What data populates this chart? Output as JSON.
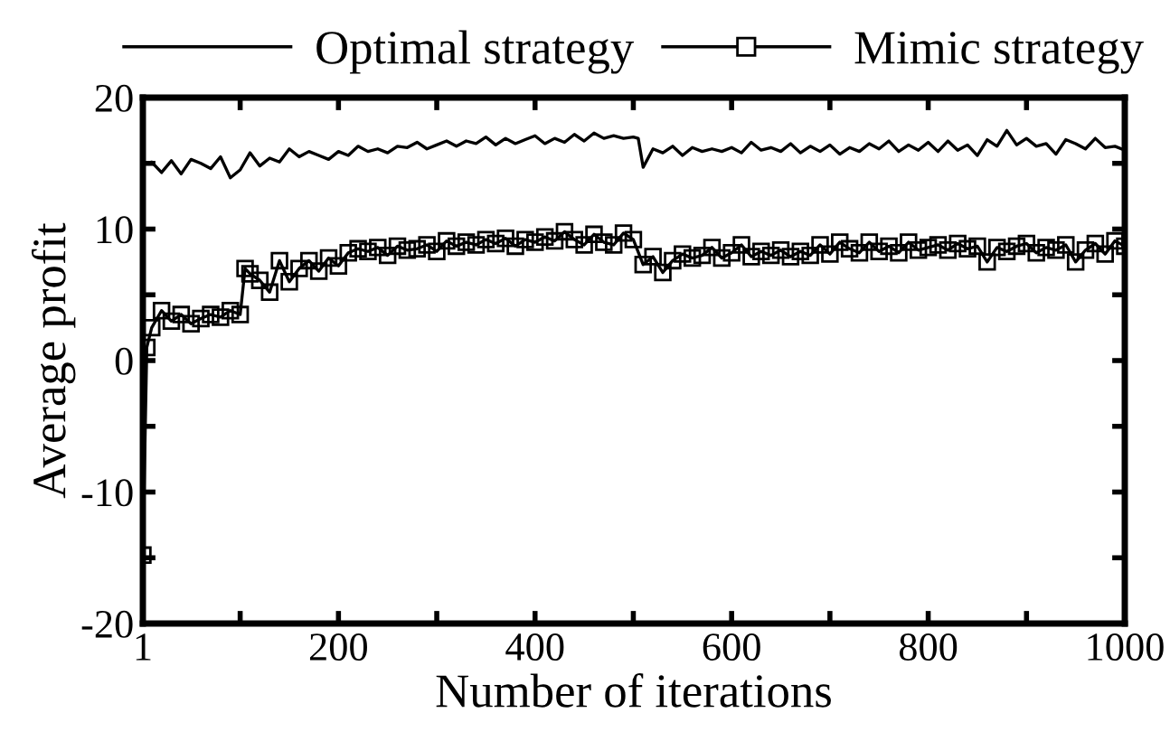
{
  "chart_data": {
    "type": "line",
    "xlabel": "Number of iterations",
    "ylabel": "Average profit",
    "xlim": [
      1,
      1000
    ],
    "ylim": [
      -20,
      20
    ],
    "xticks": [
      1,
      {
        "value": 100,
        "label": null
      },
      200,
      {
        "value": 300,
        "label": null
      },
      400,
      {
        "value": 500,
        "label": null
      },
      600,
      {
        "value": 700,
        "label": null
      },
      800,
      {
        "value": 900,
        "label": null
      },
      1000
    ],
    "yticks": [
      -20,
      {
        "value": -15,
        "label": null
      },
      -10,
      {
        "value": -5,
        "label": null
      },
      0,
      {
        "value": 5,
        "label": null
      },
      10,
      {
        "value": 15,
        "label": null
      },
      20
    ],
    "grid": false,
    "legend": "top",
    "series": [
      {
        "name": "Optimal strategy",
        "color": "#000000",
        "marker": "none",
        "x": [
          1,
          10,
          20,
          30,
          40,
          50,
          60,
          70,
          80,
          90,
          100,
          110,
          120,
          130,
          140,
          150,
          160,
          170,
          180,
          190,
          200,
          210,
          220,
          230,
          240,
          250,
          260,
          270,
          280,
          290,
          300,
          310,
          320,
          330,
          340,
          350,
          360,
          370,
          380,
          390,
          400,
          410,
          420,
          430,
          440,
          450,
          460,
          470,
          480,
          490,
          500,
          505,
          510,
          520,
          530,
          540,
          550,
          560,
          570,
          580,
          590,
          600,
          610,
          620,
          630,
          640,
          650,
          660,
          670,
          680,
          690,
          700,
          710,
          720,
          730,
          740,
          750,
          760,
          770,
          780,
          790,
          800,
          810,
          820,
          830,
          840,
          850,
          860,
          870,
          880,
          890,
          900,
          910,
          920,
          930,
          940,
          950,
          960,
          970,
          980,
          990,
          1000
        ],
        "values": [
          15.0,
          15.1,
          14.3,
          15.2,
          14.2,
          15.3,
          15.0,
          14.6,
          15.5,
          13.9,
          14.5,
          15.8,
          14.8,
          15.4,
          15.1,
          16.1,
          15.5,
          15.9,
          15.6,
          15.3,
          15.9,
          15.6,
          16.3,
          15.9,
          16.1,
          15.8,
          16.3,
          16.2,
          16.6,
          16.1,
          16.4,
          16.7,
          16.3,
          16.7,
          16.5,
          17.0,
          16.4,
          16.9,
          16.5,
          16.8,
          17.1,
          16.5,
          16.9,
          16.6,
          17.2,
          16.7,
          17.3,
          16.9,
          17.1,
          16.9,
          17.0,
          16.9,
          14.7,
          16.1,
          15.8,
          16.3,
          15.6,
          16.2,
          15.9,
          16.1,
          15.9,
          16.2,
          15.8,
          16.6,
          16.0,
          16.2,
          15.9,
          16.5,
          15.8,
          16.3,
          15.9,
          16.4,
          15.7,
          16.2,
          15.9,
          16.5,
          16.1,
          16.7,
          15.9,
          16.4,
          16.0,
          16.6,
          15.9,
          16.7,
          16.0,
          16.4,
          15.6,
          16.8,
          16.3,
          17.5,
          16.4,
          16.9,
          16.3,
          16.5,
          15.7,
          16.8,
          16.5,
          16.1,
          16.9,
          16.2,
          16.3,
          16.0
        ]
      },
      {
        "name": "Mimic strategy",
        "color": "#000000",
        "marker": "square",
        "x": [
          1,
          5,
          10,
          20,
          30,
          40,
          50,
          60,
          70,
          80,
          90,
          100,
          105,
          110,
          120,
          130,
          140,
          150,
          160,
          170,
          180,
          190,
          200,
          210,
          220,
          230,
          240,
          250,
          260,
          270,
          280,
          290,
          300,
          310,
          320,
          330,
          340,
          350,
          360,
          370,
          380,
          390,
          400,
          410,
          420,
          430,
          440,
          450,
          460,
          470,
          480,
          490,
          500,
          510,
          520,
          530,
          540,
          550,
          560,
          570,
          580,
          590,
          600,
          610,
          620,
          630,
          640,
          650,
          660,
          670,
          680,
          690,
          700,
          710,
          720,
          730,
          740,
          750,
          760,
          770,
          780,
          790,
          800,
          810,
          820,
          830,
          840,
          850,
          860,
          870,
          880,
          890,
          900,
          910,
          920,
          930,
          940,
          950,
          960,
          970,
          980,
          990,
          1000
        ],
        "values": [
          -14.8,
          1.0,
          2.5,
          3.8,
          3.0,
          3.5,
          2.8,
          3.2,
          3.5,
          3.3,
          3.8,
          3.5,
          7.0,
          6.6,
          6.1,
          5.2,
          7.6,
          6.0,
          7.0,
          7.6,
          6.8,
          7.8,
          7.2,
          8.2,
          8.5,
          8.3,
          8.6,
          8.0,
          8.7,
          8.4,
          8.5,
          8.8,
          8.3,
          9.1,
          8.7,
          9.0,
          8.8,
          9.2,
          8.9,
          9.3,
          8.7,
          9.2,
          9.0,
          9.4,
          9.1,
          9.8,
          9.2,
          8.8,
          9.6,
          9.0,
          8.8,
          9.7,
          9.2,
          7.3,
          7.9,
          6.7,
          7.6,
          8.1,
          7.8,
          8.0,
          8.6,
          7.8,
          8.2,
          8.8,
          7.9,
          8.3,
          8.0,
          8.4,
          7.9,
          8.3,
          8.0,
          8.8,
          8.1,
          9.0,
          8.5,
          8.2,
          9.0,
          8.3,
          8.7,
          8.2,
          9.0,
          8.4,
          8.6,
          8.8,
          8.4,
          8.9,
          8.5,
          8.7,
          7.5,
          8.6,
          8.3,
          8.7,
          8.9,
          8.2,
          8.6,
          8.4,
          8.8,
          7.5,
          8.4,
          8.9,
          8.1,
          9.1,
          8.7
        ]
      }
    ]
  }
}
